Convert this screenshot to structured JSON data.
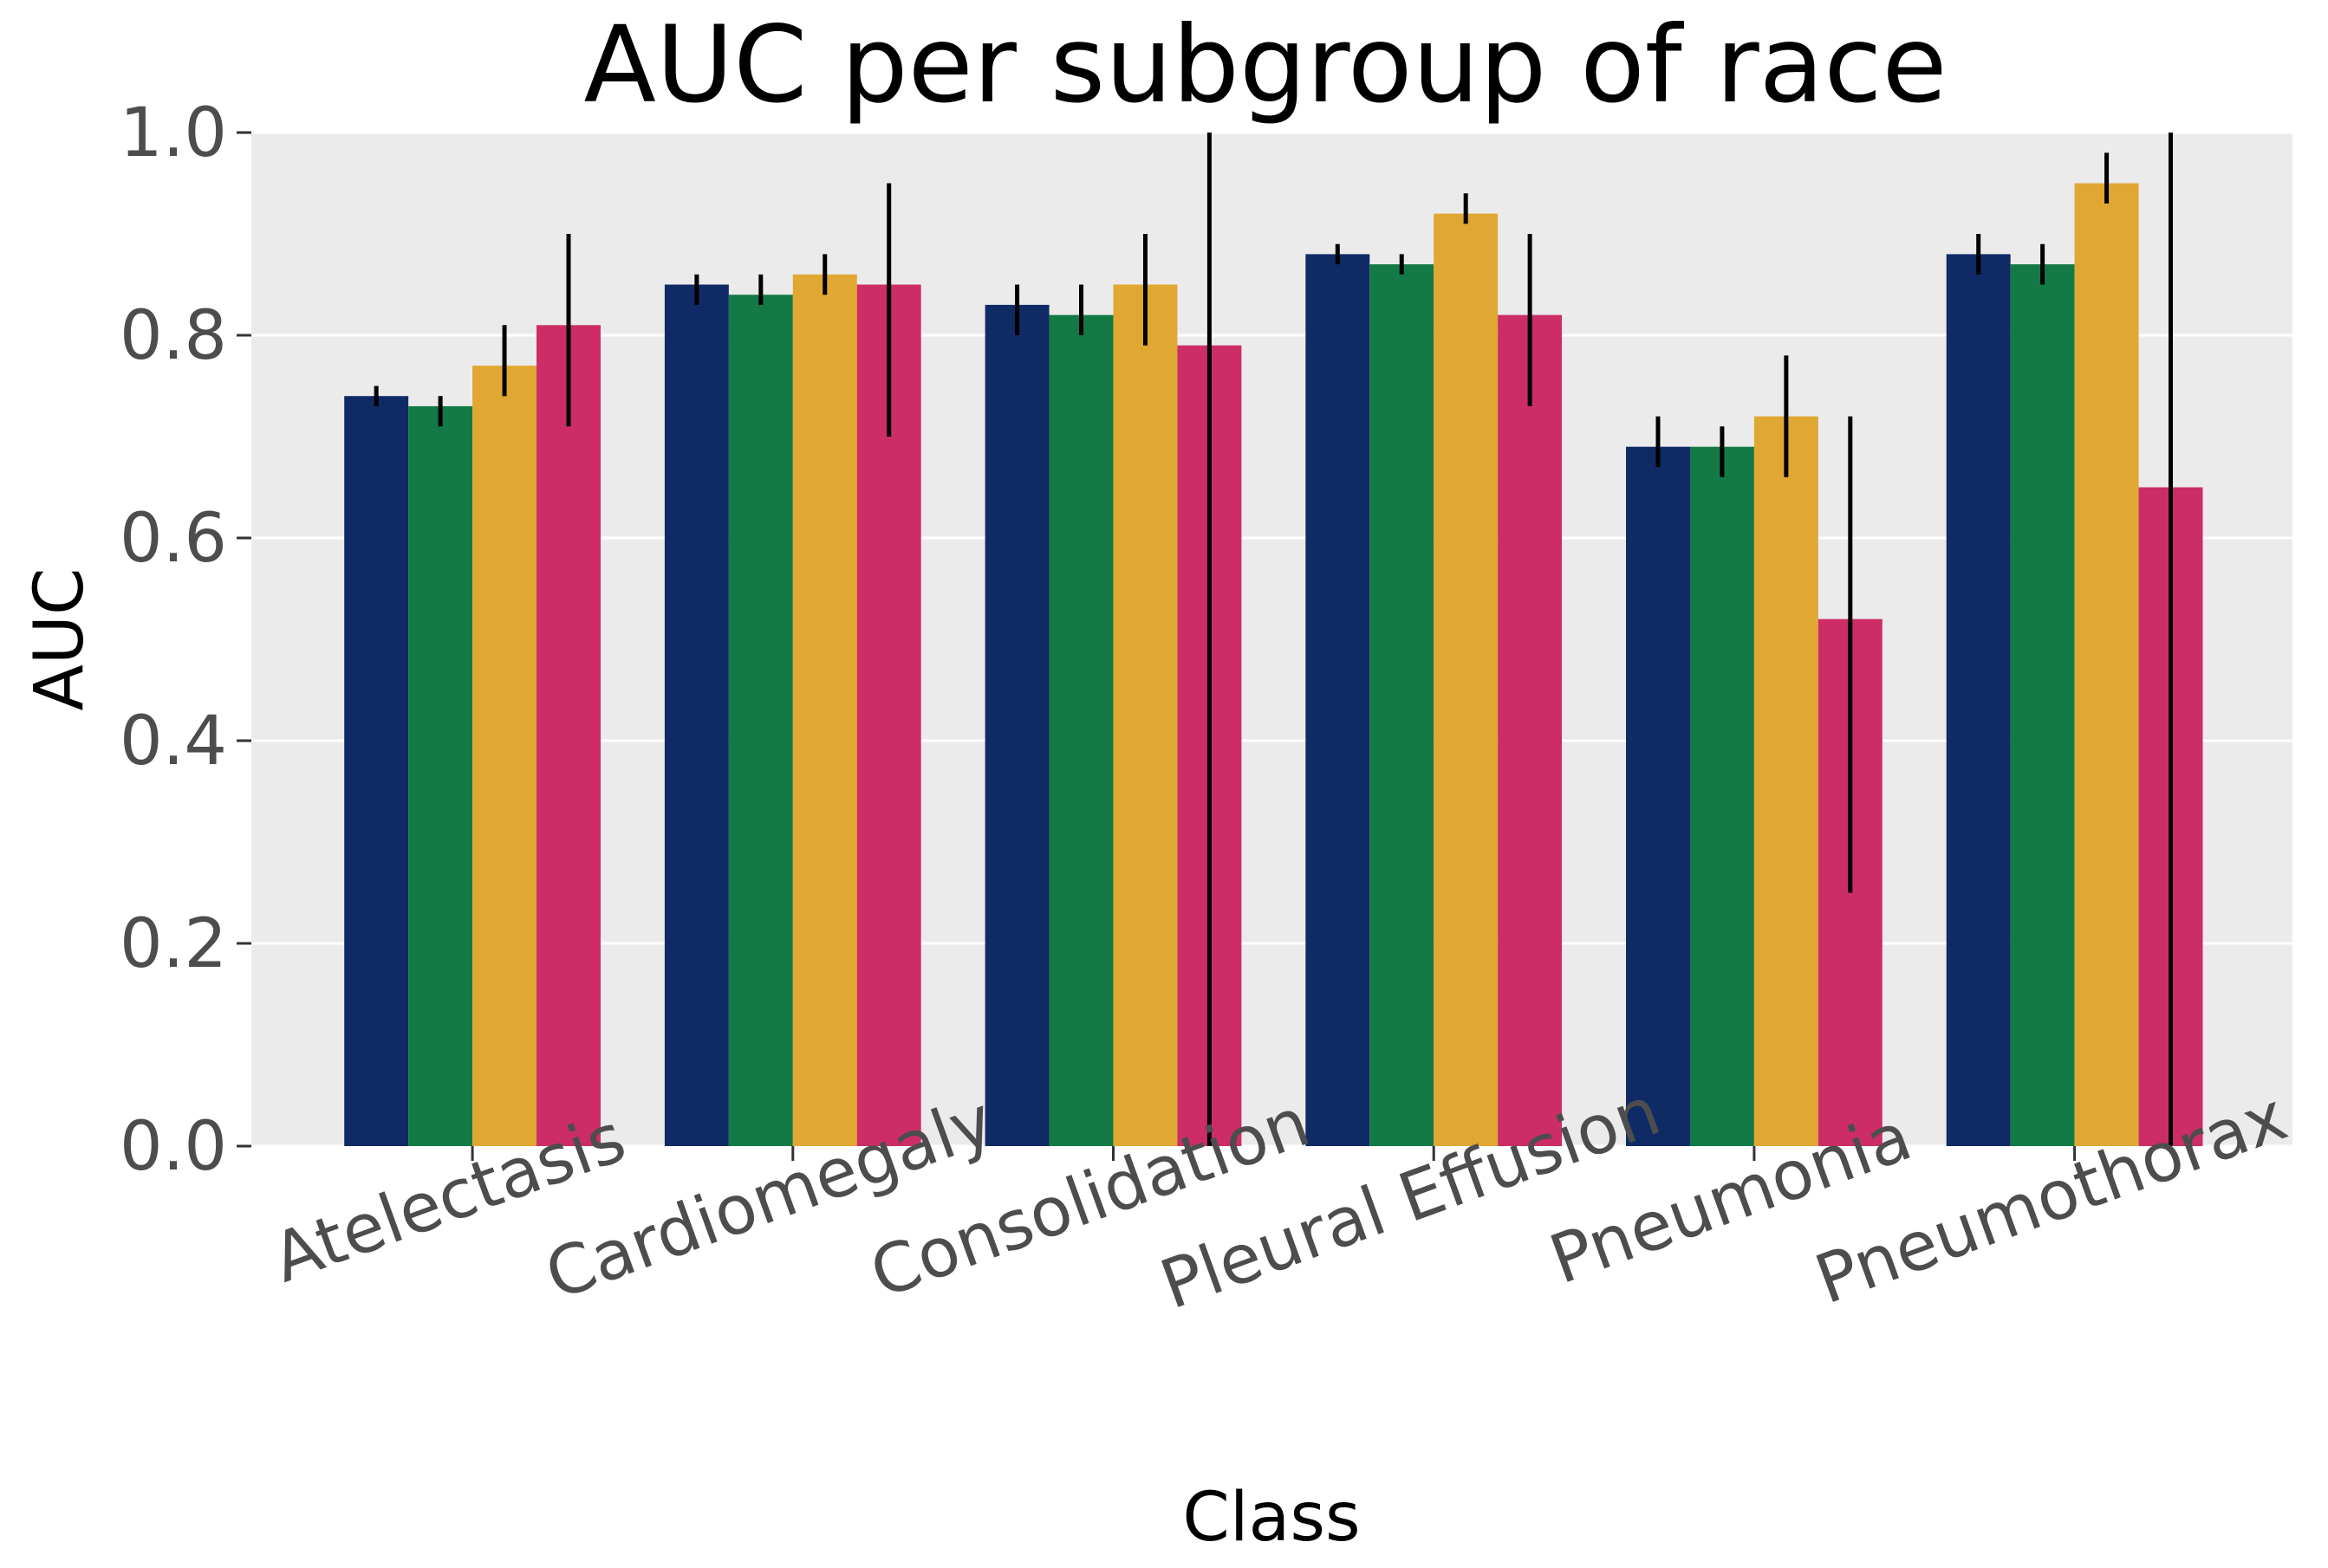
{
  "chart_data": {
    "type": "bar",
    "title": "AUC per subgroup of race",
    "xlabel": "Class",
    "ylabel": "AUC",
    "ylim": [
      0.0,
      1.0
    ],
    "yticks": [
      "0.0",
      "0.2",
      "0.4",
      "0.6",
      "0.8",
      "1.0"
    ],
    "grid": true,
    "legend": "none",
    "categories": [
      "Atelectasis",
      "Cardiomegaly",
      "Consolidation",
      "Pleural Effusion",
      "Pneumonia",
      "Pneumothorax"
    ],
    "series": [
      {
        "color": "#102a66",
        "values": [
          0.74,
          0.85,
          0.83,
          0.88,
          0.69,
          0.88
        ],
        "err_low": [
          0.73,
          0.83,
          0.8,
          0.87,
          0.67,
          0.86
        ],
        "err_high": [
          0.75,
          0.86,
          0.85,
          0.89,
          0.72,
          0.9
        ]
      },
      {
        "color": "#137a46",
        "values": [
          0.73,
          0.84,
          0.82,
          0.87,
          0.69,
          0.87
        ],
        "err_low": [
          0.71,
          0.83,
          0.8,
          0.86,
          0.66,
          0.85
        ],
        "err_high": [
          0.74,
          0.86,
          0.85,
          0.88,
          0.71,
          0.89
        ]
      },
      {
        "color": "#e0a832",
        "values": [
          0.77,
          0.86,
          0.85,
          0.92,
          0.72,
          0.95
        ],
        "err_low": [
          0.74,
          0.84,
          0.79,
          0.91,
          0.66,
          0.93
        ],
        "err_high": [
          0.81,
          0.88,
          0.9,
          0.94,
          0.78,
          0.98
        ]
      },
      {
        "color": "#cc2d66",
        "values": [
          0.81,
          0.85,
          0.79,
          0.82,
          0.52,
          0.65
        ],
        "err_low": [
          0.71,
          0.7,
          0.0,
          0.73,
          0.25,
          0.0
        ],
        "err_high": [
          0.9,
          0.95,
          1.0,
          0.9,
          0.72,
          1.0
        ]
      }
    ],
    "colors": {
      "plot_background": "#ebebeb",
      "grid": "#ffffff",
      "tick_text": "#4d4d4d"
    }
  }
}
